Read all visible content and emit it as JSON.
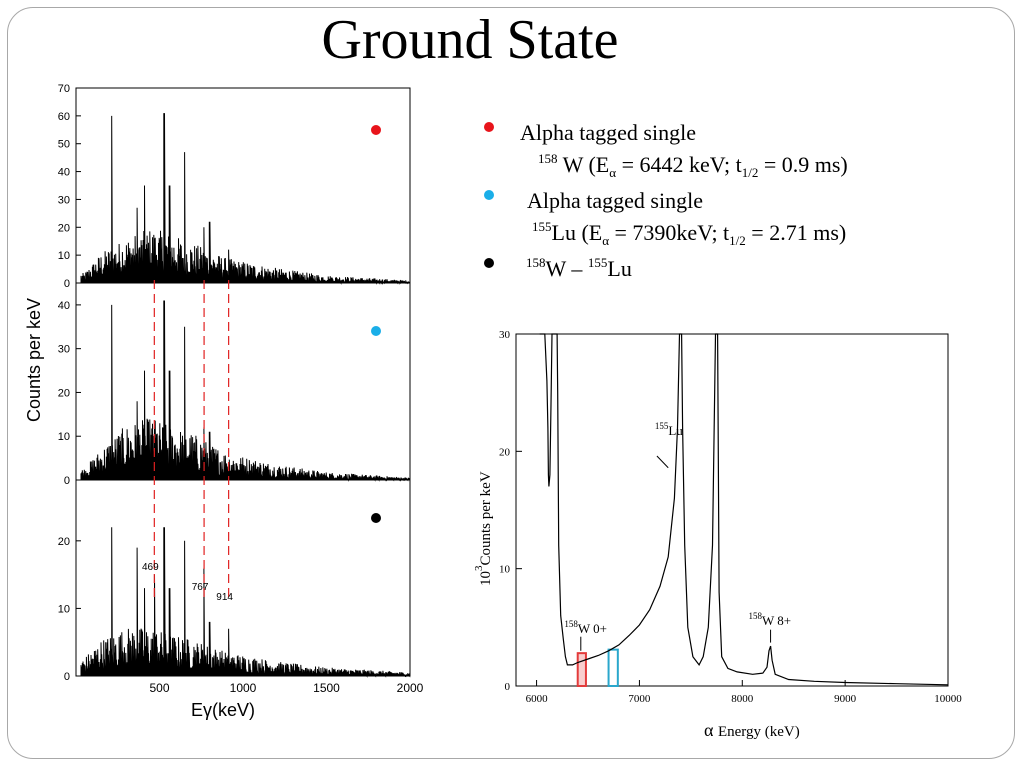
{
  "slide": {
    "title": "Ground State",
    "bullets": [
      {
        "marker_color": "#e8141b",
        "lines": [
          "Alpha tagged single",
          "158W (Eα = 6442 keV; t1/2 = 0.9 ms)"
        ],
        "line2_parts": {
          "mass": "158",
          "el": "W (E",
          "sub1": "α",
          "mid": " =  6442 keV; t",
          "sub2": "1/2",
          "end": "  = 0.9   ms)"
        }
      },
      {
        "marker_color": "#1aaee8",
        "lines": [
          "Alpha tagged single",
          "155Lu (Eα = 7390keV; t1/2 = 2.71 ms)"
        ],
        "line2_parts": {
          "mass": "155",
          "el": "Lu (E",
          "sub1": "α",
          "mid": " = 7390keV; t",
          "sub2": "1/2",
          "end": " = 2.71 ms)"
        }
      },
      {
        "marker_color": "#000000",
        "lines": [
          "158W – 155Lu"
        ],
        "line1_parts": {
          "mass1": "158",
          "el1": "W – ",
          "mass2": "155",
          "el2": "Lu"
        }
      }
    ]
  },
  "chart_data": [
    {
      "type": "line",
      "title": "",
      "xlabel": "Eγ(keV)",
      "ylabel": "Counts per keV",
      "xlim": [
        0,
        2000
      ],
      "x_ticks": [
        500,
        1000,
        1500,
        2000
      ],
      "panels": [
        {
          "marker_color": "#e8141b",
          "ylim": [
            0,
            70
          ],
          "y_ticks": [
            0,
            10,
            20,
            30,
            40,
            50,
            60,
            70
          ],
          "peaks": [
            [
              215,
              60
            ],
            [
              365,
              27
            ],
            [
              410,
              35
            ],
            [
              470,
              16
            ],
            [
              528,
              61
            ],
            [
              560,
              35
            ],
            [
              650,
              47
            ],
            [
              767,
              20
            ],
            [
              800,
              22
            ],
            [
              914,
              12
            ]
          ],
          "background": [
            [
              50,
              2
            ],
            [
              150,
              6
            ],
            [
              300,
              9
            ],
            [
              450,
              11
            ],
            [
              550,
              10
            ],
            [
              700,
              8
            ],
            [
              900,
              5
            ],
            [
              1200,
              3
            ],
            [
              1500,
              1.5
            ],
            [
              2000,
              0.5
            ]
          ]
        },
        {
          "marker_color": "#1aaee8",
          "ylim": [
            0,
            45
          ],
          "y_ticks": [
            0,
            10,
            20,
            30,
            40
          ],
          "peaks": [
            [
              215,
              40
            ],
            [
              365,
              18
            ],
            [
              410,
              25
            ],
            [
              470,
              12
            ],
            [
              528,
              41
            ],
            [
              560,
              25
            ],
            [
              650,
              35
            ],
            [
              767,
              12
            ],
            [
              800,
              11
            ]
          ],
          "background": [
            [
              50,
              1.5
            ],
            [
              150,
              4
            ],
            [
              300,
              7
            ],
            [
              450,
              8
            ],
            [
              550,
              7
            ],
            [
              700,
              6
            ],
            [
              900,
              3.5
            ],
            [
              1200,
              2
            ],
            [
              1500,
              1
            ],
            [
              2000,
              0.3
            ]
          ]
        },
        {
          "marker_color": "#000000",
          "ylim": [
            0,
            29
          ],
          "y_ticks": [
            0,
            10,
            20
          ],
          "peaks": [
            [
              215,
              22
            ],
            [
              365,
              19
            ],
            [
              410,
              13
            ],
            [
              470,
              15
            ],
            [
              528,
              22
            ],
            [
              560,
              13
            ],
            [
              650,
              20
            ],
            [
              767,
              16
            ],
            [
              800,
              8
            ],
            [
              914,
              7
            ]
          ],
          "background": [
            [
              50,
              1.5
            ],
            [
              150,
              3
            ],
            [
              300,
              4
            ],
            [
              450,
              4
            ],
            [
              550,
              3.5
            ],
            [
              700,
              3
            ],
            [
              900,
              2
            ],
            [
              1200,
              1.2
            ],
            [
              1500,
              0.7
            ],
            [
              2000,
              0.3
            ]
          ]
        }
      ],
      "annotations": [
        {
          "x": 469,
          "label": "469"
        },
        {
          "x": 767,
          "label": "767"
        },
        {
          "x": 914,
          "label": "914"
        }
      ],
      "marker_lines_x": [
        469,
        767,
        914
      ]
    },
    {
      "type": "line",
      "title": "",
      "xlabel": "α Energy (keV)",
      "xlabel_parts": {
        "alpha": "α",
        "rest": "Energy (keV)"
      },
      "ylabel": "10³ Counts per keV",
      "ylabel_parts": {
        "base": "10",
        "exp": "3",
        "rest": "Counts per keV"
      },
      "xlim": [
        5800,
        10000
      ],
      "ylim": [
        0,
        30
      ],
      "x_ticks": [
        6000,
        7000,
        8000,
        9000,
        10000
      ],
      "y_ticks": [
        0,
        10,
        20,
        30
      ],
      "series": [
        {
          "values": [
            [
              6030,
              30
            ],
            [
              6050,
              30
            ],
            [
              6080,
              30
            ],
            [
              6100,
              26
            ],
            [
              6110,
              22
            ],
            [
              6115,
              18
            ],
            [
              6120,
              17
            ],
            [
              6130,
              18
            ],
            [
              6140,
              24
            ],
            [
              6150,
              30
            ],
            [
              6180,
              30
            ],
            [
              6200,
              30
            ],
            [
              6205,
              25
            ],
            [
              6215,
              12
            ],
            [
              6235,
              6
            ],
            [
              6260,
              4
            ],
            [
              6280,
              2.5
            ],
            [
              6300,
              1.8
            ],
            [
              6350,
              1.8
            ],
            [
              6400,
              2.0
            ],
            [
              6500,
              2.3
            ],
            [
              6600,
              2.6
            ],
            [
              6700,
              3.0
            ],
            [
              6800,
              3.5
            ],
            [
              6900,
              4.3
            ],
            [
              7000,
              5.2
            ],
            [
              7100,
              6.5
            ],
            [
              7200,
              8.5
            ],
            [
              7280,
              11
            ],
            [
              7340,
              16
            ],
            [
              7370,
              22
            ],
            [
              7385,
              28
            ],
            [
              7390,
              30
            ],
            [
              7410,
              30
            ],
            [
              7420,
              22
            ],
            [
              7440,
              12
            ],
            [
              7470,
              5
            ],
            [
              7520,
              2.5
            ],
            [
              7580,
              1.8
            ],
            [
              7620,
              2.5
            ],
            [
              7670,
              5
            ],
            [
              7710,
              12
            ],
            [
              7740,
              30
            ],
            [
              7760,
              30
            ],
            [
              7775,
              8
            ],
            [
              7800,
              2.5
            ],
            [
              7860,
              1.5
            ],
            [
              7950,
              1.2
            ],
            [
              8100,
              1.0
            ],
            [
              8200,
              1.1
            ],
            [
              8240,
              1.6
            ],
            [
              8260,
              3.0
            ],
            [
              8275,
              3.4
            ],
            [
              8290,
              2.2
            ],
            [
              8320,
              1.0
            ],
            [
              8450,
              0.55
            ],
            [
              8700,
              0.4
            ],
            [
              9000,
              0.3
            ],
            [
              9500,
              0.2
            ],
            [
              10000,
              0.1
            ]
          ]
        }
      ],
      "annotations": [
        {
          "label_mass": "155",
          "label": "Lu",
          "x": 7250,
          "y": 22
        },
        {
          "label_mass": "158",
          "label": "W 0+",
          "x": 6420,
          "y": 4
        },
        {
          "label_mass": "158",
          "label": "W 8+",
          "x": 8275,
          "y": 5
        }
      ],
      "gates": [
        {
          "color": "#e33b3b",
          "x": [
            6400,
            6480
          ],
          "y": [
            0,
            2.8
          ]
        },
        {
          "color": "#2aa7cc",
          "x": [
            6700,
            6790
          ],
          "y": [
            0,
            3.1
          ]
        }
      ]
    }
  ]
}
